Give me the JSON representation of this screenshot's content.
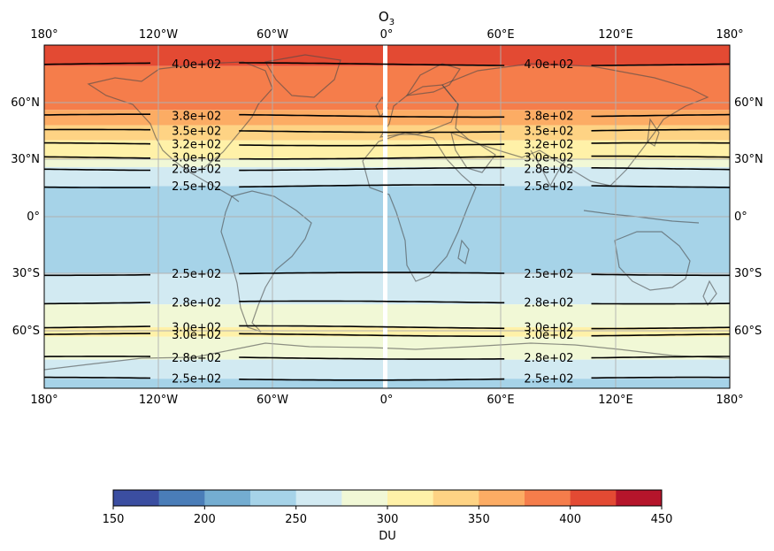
{
  "title": {
    "base": "O",
    "subscript": "3"
  },
  "lon_ticks": [
    "180°",
    "120°W",
    "60°W",
    "0°",
    "60°E",
    "120°E",
    "180°"
  ],
  "lat_ticks_left": [
    "60°N",
    "30°N",
    "0°",
    "30°S",
    "60°S"
  ],
  "lat_ticks_right": [
    "60°N",
    "30°N",
    "0°",
    "30°S",
    "60°S"
  ],
  "colorbar": {
    "label": "DU",
    "ticks": [
      "150",
      "200",
      "250",
      "300",
      "350",
      "400",
      "450"
    ],
    "levels": [
      150,
      175,
      200,
      225,
      250,
      275,
      300,
      325,
      350,
      375,
      400,
      425,
      450
    ],
    "colors": [
      "#3b4ea1",
      "#4a7db8",
      "#74add1",
      "#a6d3e8",
      "#d2eaf2",
      "#f1f8d6",
      "#fff1a8",
      "#fed384",
      "#fcac64",
      "#f57d4b",
      "#e34a33",
      "#b5152b"
    ]
  },
  "chart_data": {
    "type": "contour-map",
    "variable": "O3",
    "units": "DU",
    "projection": "PlateCarree",
    "lon_range": [
      -180,
      180
    ],
    "lat_range": [
      -90,
      90
    ],
    "bands": [
      {
        "lat_top": 90,
        "lat_bottom": 79,
        "value_range": [
          400,
          425
        ]
      },
      {
        "lat_top": 79,
        "lat_bottom": 56,
        "value_range": [
          375,
          400
        ]
      },
      {
        "lat_top": 56,
        "lat_bottom": 48,
        "value_range": [
          350,
          375
        ]
      },
      {
        "lat_top": 48,
        "lat_bottom": 40,
        "value_range": [
          325,
          350
        ]
      },
      {
        "lat_top": 40,
        "lat_bottom": 30,
        "value_range": [
          300,
          325
        ]
      },
      {
        "lat_top": 30,
        "lat_bottom": 26,
        "value_range": [
          275,
          300
        ]
      },
      {
        "lat_top": 26,
        "lat_bottom": 16,
        "value_range": [
          250,
          275
        ]
      },
      {
        "lat_top": 16,
        "lat_bottom": -30,
        "value_range": [
          225,
          250
        ]
      },
      {
        "lat_top": -30,
        "lat_bottom": -46,
        "value_range": [
          250,
          275
        ]
      },
      {
        "lat_top": -46,
        "lat_bottom": -58,
        "value_range": [
          275,
          300
        ]
      },
      {
        "lat_top": -58,
        "lat_bottom": -63,
        "value_range": [
          300,
          325
        ]
      },
      {
        "lat_top": -63,
        "lat_bottom": -75,
        "value_range": [
          275,
          300
        ]
      },
      {
        "lat_top": -75,
        "lat_bottom": -85,
        "value_range": [
          250,
          275
        ]
      },
      {
        "lat_top": -85,
        "lat_bottom": -90,
        "value_range": [
          225,
          250
        ]
      }
    ],
    "contours": [
      {
        "lat": 80,
        "value": 400,
        "label": "4.0e+02"
      },
      {
        "lat": 53,
        "value": 375,
        "label": "3.8e+02"
      },
      {
        "lat": 45,
        "value": 350,
        "label": "3.5e+02"
      },
      {
        "lat": 38,
        "value": 325,
        "label": "3.2e+02"
      },
      {
        "lat": 31,
        "value": 300,
        "label": "3.0e+02"
      },
      {
        "lat": 25,
        "value": 275,
        "label": "2.8e+02"
      },
      {
        "lat": 16,
        "value": 250,
        "label": "2.5e+02"
      },
      {
        "lat": -30,
        "value": 250,
        "label": "2.5e+02"
      },
      {
        "lat": -45,
        "value": 275,
        "label": "2.8e+02"
      },
      {
        "lat": -58,
        "value": 300,
        "label": "3.0e+02"
      },
      {
        "lat": -62,
        "value": 300,
        "label": "3.0e+02"
      },
      {
        "lat": -74,
        "value": 275,
        "label": "2.8e+02"
      },
      {
        "lat": -85,
        "value": 250,
        "label": "2.5e+02"
      }
    ],
    "label_lons": [
      -100,
      85
    ],
    "gridlines": true,
    "coastlines": true
  }
}
